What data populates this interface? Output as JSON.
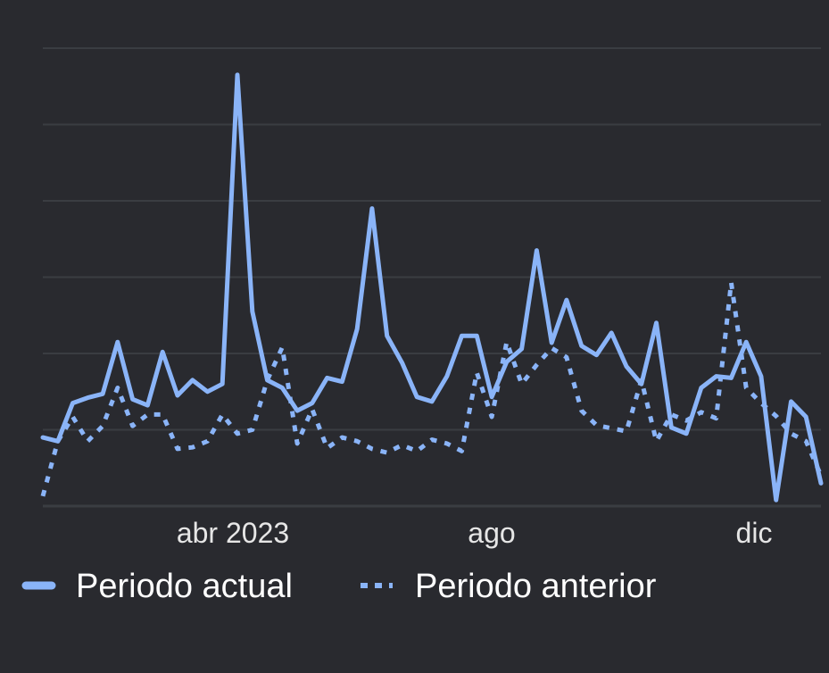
{
  "colors": {
    "background": "#292a2f",
    "grid": "#3a3d42",
    "series": "#8ab4f8",
    "text": "#e6e6e6"
  },
  "chart_data": {
    "type": "line",
    "title": "",
    "xlabel": "",
    "ylabel": "",
    "grid": true,
    "legend_position": "bottom-left",
    "x_tick_labels": [
      "abr 2023",
      "ago",
      "dic"
    ],
    "ylim": [
      0,
      60
    ],
    "series": [
      {
        "name": "Periodo actual",
        "style": "solid",
        "values": [
          9,
          8.5,
          13.5,
          14.2,
          14.7,
          21.5,
          14,
          13.2,
          20.2,
          14.5,
          16.5,
          15,
          16,
          56.5,
          25.5,
          16.5,
          15.5,
          12.5,
          13.5,
          16.8,
          16.3,
          23.2,
          39,
          22.3,
          18.8,
          14.3,
          13.7,
          17,
          22.3,
          22.3,
          14.3,
          18.9,
          20.6,
          33.5,
          21.4,
          27,
          21,
          19.8,
          22.7,
          18.3,
          16,
          24,
          10.3,
          9.5,
          15.5,
          17,
          16.8,
          21.5,
          17,
          0.8,
          13.7,
          11.7,
          3
        ]
      },
      {
        "name": "Periodo anterior",
        "style": "dotted",
        "values": [
          1.3,
          8.5,
          11.7,
          8.5,
          10.5,
          15.5,
          10.5,
          12,
          12,
          7.5,
          7.7,
          8.5,
          12,
          9.5,
          10,
          16.5,
          20.8,
          8.2,
          12.7,
          7.6,
          9,
          8.5,
          7.5,
          7,
          8,
          7.2,
          8.7,
          8.2,
          7.2,
          17.5,
          11.7,
          21.5,
          16,
          18.5,
          20.7,
          19.5,
          12.5,
          10.6,
          10.2,
          9.8,
          16.5,
          8.5,
          12,
          11.2,
          12.3,
          11.5,
          29.3,
          15.5,
          13.5,
          11.8,
          9.5,
          8.5,
          4
        ]
      }
    ]
  }
}
